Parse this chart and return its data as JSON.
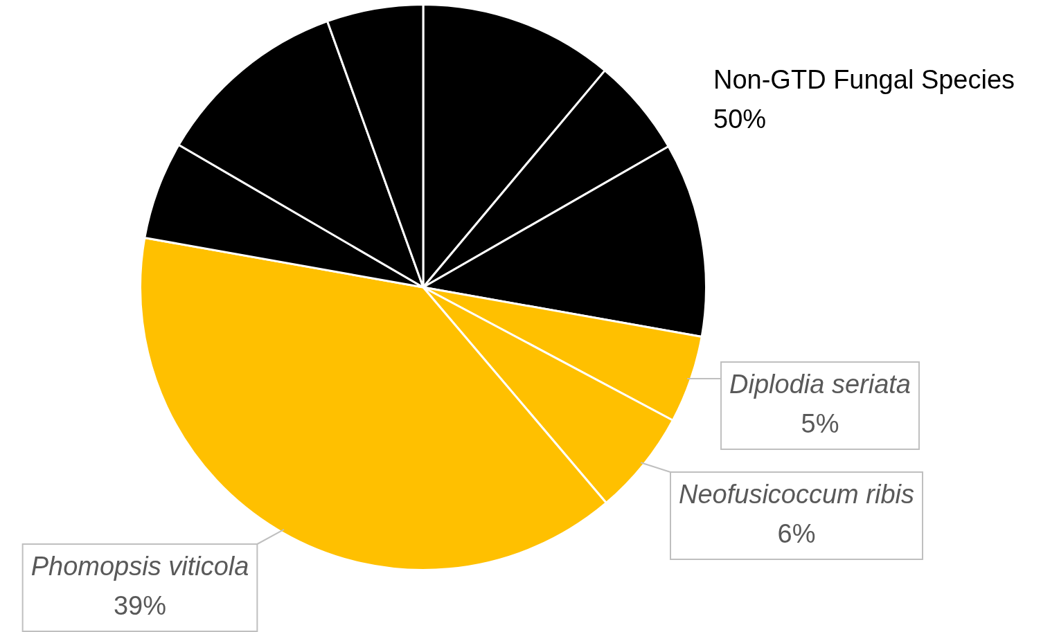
{
  "chart_data": {
    "type": "pie",
    "categories": [
      null,
      null,
      null,
      "Diplodia seriata",
      "Neofusicoccum ribis",
      "Phomopsis viticola",
      null,
      null,
      null
    ],
    "values": [
      11.1,
      5.6,
      11.1,
      5,
      6,
      39,
      5.6,
      11.1,
      5.5
    ],
    "colors": [
      "#000000",
      "#000000",
      "#000000",
      "#ffc000",
      "#ffc000",
      "#ffc000",
      "#000000",
      "#000000",
      "#000000"
    ],
    "value_labels": [
      null,
      null,
      null,
      "5%",
      "6%",
      "39%",
      null,
      null,
      null
    ],
    "annotations": [
      "Non-GTD Fungal Species\n50%"
    ],
    "legend": false
  }
}
